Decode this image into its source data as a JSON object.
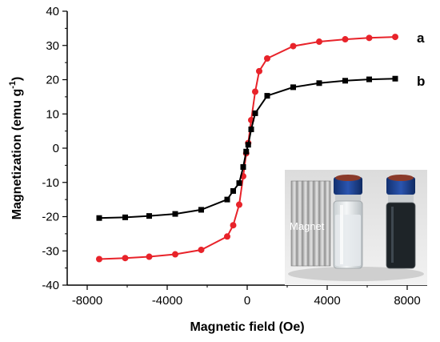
{
  "chart_data": {
    "type": "line",
    "xlabel": "Magnetic field (Oe)",
    "ylabel_main": "Magnetization (emu g",
    "ylabel_sup": "-1",
    "ylabel_close": ")",
    "xlim": [
      -9000,
      9000
    ],
    "ylim": [
      -40,
      40
    ],
    "xticks": [
      -8000,
      -4000,
      0,
      4000,
      8000
    ],
    "yticks": [
      -40,
      -30,
      -20,
      -10,
      0,
      10,
      20,
      30,
      40
    ],
    "xtick_labels": [
      "-8000",
      "-4000",
      "0",
      "4000",
      "8000"
    ],
    "ytick_labels": [
      "-40",
      "-30",
      "-20",
      "-10",
      "0",
      "10",
      "20",
      "30",
      "40"
    ],
    "series": [
      {
        "name": "a",
        "color": "#e8232a",
        "marker": "circle",
        "x": [
          -7400,
          -6100,
          -4900,
          -3600,
          -2300,
          -1000,
          -700,
          -400,
          -200,
          -50,
          50,
          200,
          400,
          600,
          1000,
          2300,
          3600,
          4900,
          6100,
          7400
        ],
        "y": [
          -32.4,
          -32.1,
          -31.7,
          -31.0,
          -29.7,
          -25.8,
          -22.5,
          -16.5,
          -8.2,
          -1.5,
          1.5,
          8.2,
          16.5,
          22.5,
          26.2,
          29.8,
          31.1,
          31.8,
          32.2,
          32.5
        ]
      },
      {
        "name": "b",
        "color": "#000000",
        "marker": "square",
        "x": [
          -7400,
          -6100,
          -4900,
          -3600,
          -2300,
          -1000,
          -700,
          -400,
          -200,
          -50,
          50,
          200,
          400,
          1000,
          2300,
          3600,
          4900,
          6100,
          7400
        ],
        "y": [
          -20.4,
          -20.2,
          -19.8,
          -19.2,
          -18.0,
          -15.0,
          -12.5,
          -10.2,
          -5.5,
          -1.0,
          1.0,
          5.5,
          10.2,
          15.3,
          17.8,
          19.0,
          19.7,
          20.1,
          20.3
        ]
      }
    ]
  },
  "inset": {
    "magnet_label": "Magnet"
  },
  "colors": {
    "series_a": "#e8232a",
    "series_b": "#000000",
    "cap": "#1b3f8f"
  }
}
